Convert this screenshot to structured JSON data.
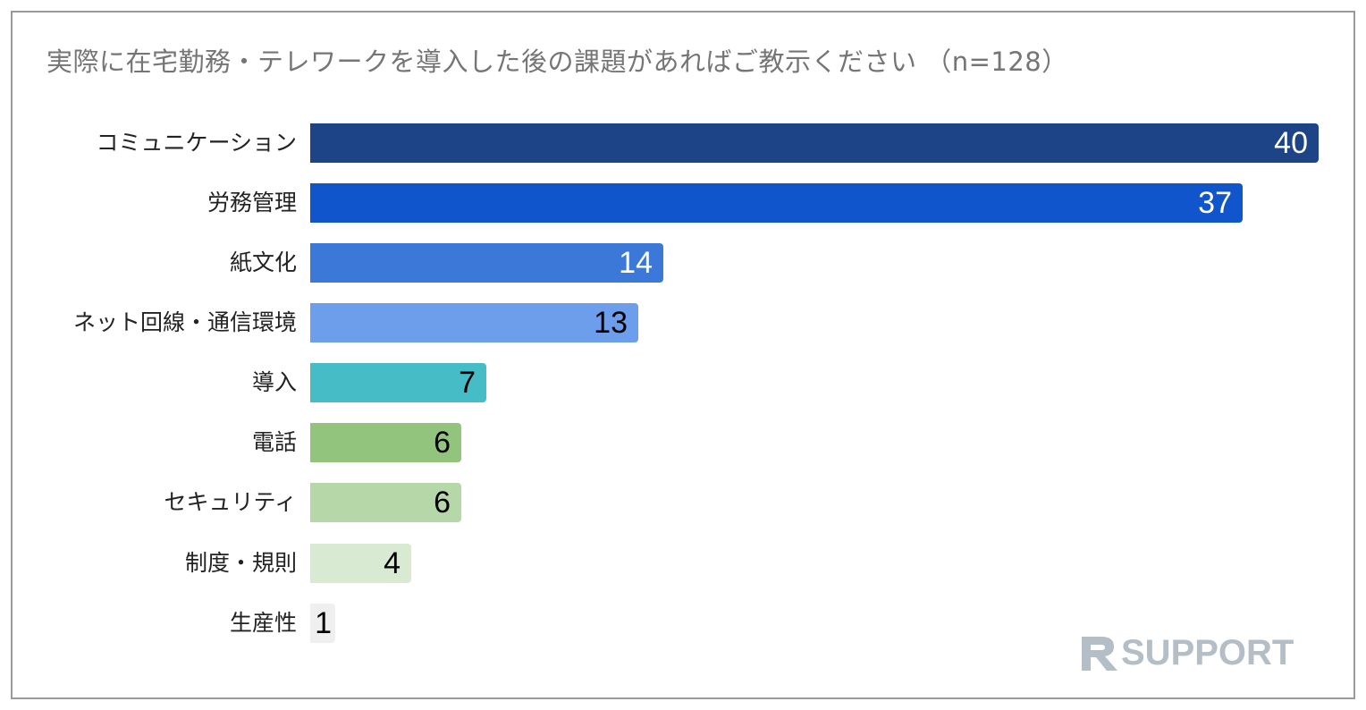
{
  "title": "実際に在宅勤務・テレワークを導入した後の課題があればご教示ください （n=128）",
  "logo": {
    "text": "SUPPORT",
    "icon": "rsupport-r-logo-icon",
    "color": "#b4bec6"
  },
  "chart_data": {
    "type": "bar",
    "orientation": "horizontal",
    "title": "実際に在宅勤務・テレワークを導入した後の課題があればご教示ください （n=128）",
    "xlabel": "",
    "ylabel": "",
    "grid": false,
    "legend": "none",
    "categories": [
      "コミュニケーション",
      "労務管理",
      "紙文化",
      "ネット回線・通信環境",
      "導入",
      "電話",
      "セキュリティ",
      "制度・規則",
      "生産性"
    ],
    "values": [
      40,
      37,
      14,
      13,
      7,
      6,
      6,
      4,
      1
    ],
    "colors": [
      "#1e4488",
      "#1155cc",
      "#3c78d8",
      "#6d9eeb",
      "#46bdc6",
      "#93c47d",
      "#b6d7a8",
      "#d9ead3",
      "#efefef"
    ],
    "label_colors": [
      "#ffffff",
      "#ffffff",
      "#ffffff",
      "#000000",
      "#000000",
      "#000000",
      "#000000",
      "#000000",
      "#000000"
    ],
    "xlim": [
      0,
      40
    ]
  },
  "rows": [
    {
      "label": "コミュニケーション",
      "value": "40"
    },
    {
      "label": "労務管理",
      "value": "37"
    },
    {
      "label": "紙文化",
      "value": "14"
    },
    {
      "label": "ネット回線・通信環境",
      "value": "13"
    },
    {
      "label": "導入",
      "value": "7"
    },
    {
      "label": "電話",
      "value": "6"
    },
    {
      "label": "セキュリティ",
      "value": "6"
    },
    {
      "label": "制度・規則",
      "value": "4"
    },
    {
      "label": "生産性",
      "value": "1"
    }
  ]
}
